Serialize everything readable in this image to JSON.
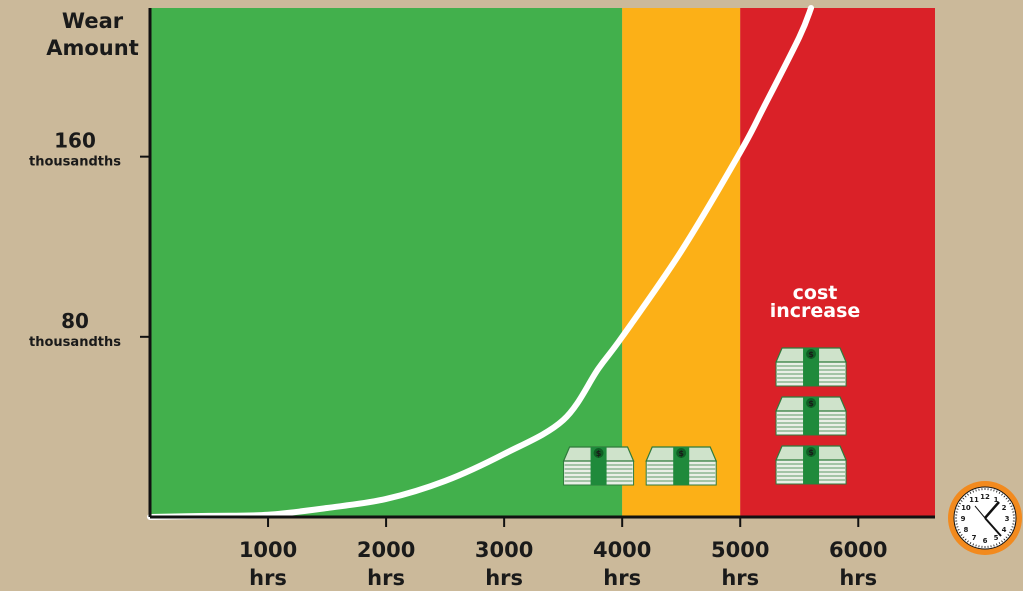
{
  "chart_data": {
    "type": "line",
    "ylabel": "Wear Amount",
    "y_ticks": [
      {
        "value": 80,
        "label": "80",
        "sublabel": "thousandths"
      },
      {
        "value": 160,
        "label": "160",
        "sublabel": "thousandths"
      }
    ],
    "x_ticks": [
      {
        "value": 1000,
        "label": "1000",
        "sublabel": "hrs"
      },
      {
        "value": 2000,
        "label": "2000",
        "sublabel": "hrs"
      },
      {
        "value": 3000,
        "label": "3000",
        "sublabel": "hrs"
      },
      {
        "value": 4000,
        "label": "4000",
        "sublabel": "hrs"
      },
      {
        "value": 5000,
        "label": "5000",
        "sublabel": "hrs"
      },
      {
        "value": 6000,
        "label": "6000",
        "sublabel": "hrs"
      }
    ],
    "xlim": [
      0,
      6650
    ],
    "ylim": [
      0,
      226
    ],
    "zones": [
      {
        "from": 0,
        "to": 4000,
        "color": "#42b04c"
      },
      {
        "from": 4000,
        "to": 5000,
        "color": "#fcb017"
      },
      {
        "from": 5000,
        "to": 6650,
        "color": "#da2128"
      }
    ],
    "series": [
      {
        "color": "#ffffff",
        "x": [
          0,
          500,
          1000,
          1500,
          2000,
          2500,
          3000,
          3500,
          3800,
          4000,
          4500,
          5000,
          5200,
          5500,
          5600
        ],
        "y": [
          0,
          0.5,
          1,
          4,
          8,
          16,
          28,
          43,
          66,
          80,
          118,
          162,
          182,
          213,
          226
        ]
      }
    ],
    "annotation": {
      "text_line1": "cost",
      "text_line2": "increase",
      "color": "#ffffff"
    },
    "money_stacks": [
      {
        "zone": 0,
        "count": 1
      },
      {
        "zone": 1,
        "count": 1
      },
      {
        "zone": 2,
        "count": 3
      }
    ],
    "clock_icon": "clock-icon",
    "axis_color": "#111111",
    "background": "#cbb99a"
  }
}
